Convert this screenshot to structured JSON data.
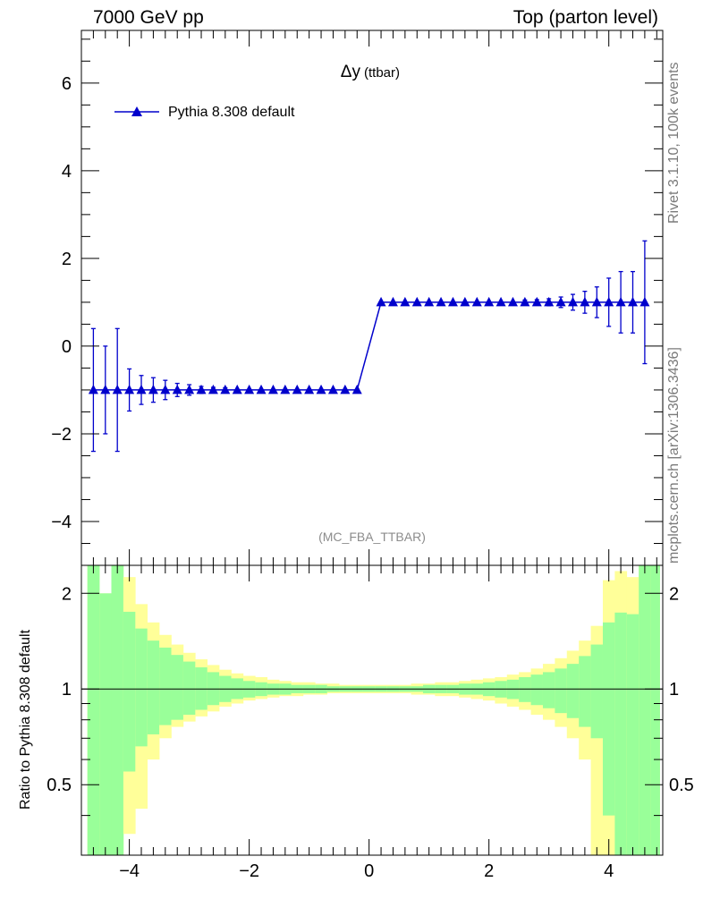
{
  "header": {
    "left": "7000 GeV pp",
    "right": "Top (parton level)"
  },
  "side_labels": {
    "rivet": "Rivet 3.1.10,  100k events",
    "source": "mcplots.cern.ch [arXiv:1306.3436]"
  },
  "colors": {
    "series": "#0000cc",
    "band_stat": "#99ff99",
    "band_total": "#ffff99",
    "tag": "#8c8c8c"
  },
  "chart_data": [
    {
      "type": "line",
      "title": "Δy",
      "title_sub": "(ttbar)",
      "analysis_tag": "(MC_FBA_TTBAR)",
      "xlim": [
        -4.8,
        4.9
      ],
      "ylim": [
        -5,
        7.2
      ],
      "yticks": [
        -4,
        -2,
        0,
        2,
        4,
        6
      ],
      "ytick_labels": [
        "−4",
        "−2",
        "0",
        "2",
        "4",
        "6"
      ],
      "legend_position": "top-left",
      "series": [
        {
          "name": "Pythia 8.308 default",
          "marker": "triangle",
          "x": [
            -4.6,
            -4.4,
            -4.2,
            -4.0,
            -3.8,
            -3.6,
            -3.4,
            -3.2,
            -3.0,
            -2.8,
            -2.6,
            -2.4,
            -2.2,
            -2.0,
            -1.8,
            -1.6,
            -1.4,
            -1.2,
            -1.0,
            -0.8,
            -0.6,
            -0.4,
            -0.2,
            0.2,
            0.4,
            0.6,
            0.8,
            1.0,
            1.2,
            1.4,
            1.6,
            1.8,
            2.0,
            2.2,
            2.4,
            2.6,
            2.8,
            3.0,
            3.2,
            3.4,
            3.6,
            3.8,
            4.0,
            4.2,
            4.4,
            4.6
          ],
          "y": [
            -1,
            -1,
            -1,
            -1,
            -1,
            -1,
            -1,
            -1,
            -1,
            -1,
            -1,
            -1,
            -1,
            -1,
            -1,
            -1,
            -1,
            -1,
            -1,
            -1,
            -1,
            -1,
            -1,
            1,
            1,
            1,
            1,
            1,
            1,
            1,
            1,
            1,
            1,
            1,
            1,
            1,
            1,
            1,
            1,
            1,
            1,
            1,
            1,
            1,
            1,
            1
          ],
          "yerr": [
            1.4,
            1.0,
            1.4,
            0.48,
            0.33,
            0.28,
            0.22,
            0.15,
            0.12,
            0.08,
            0.06,
            0.05,
            0.04,
            0.03,
            0.03,
            0.02,
            0.02,
            0.02,
            0.01,
            0.01,
            0.01,
            0.01,
            0.01,
            0.01,
            0.01,
            0.01,
            0.01,
            0.01,
            0.01,
            0.02,
            0.02,
            0.02,
            0.03,
            0.03,
            0.04,
            0.05,
            0.06,
            0.08,
            0.12,
            0.18,
            0.25,
            0.35,
            0.55,
            0.7,
            0.7,
            1.4
          ]
        }
      ]
    },
    {
      "type": "area",
      "ylabel": "Ratio to Pythia 8.308 default",
      "xlim": [
        -4.8,
        4.9
      ],
      "ylim": [
        0.3,
        2.45
      ],
      "yticks": [
        0.5,
        1,
        2
      ],
      "ytick_labels": [
        "0.5",
        "1",
        "2"
      ],
      "xticks": [
        -4,
        -2,
        0,
        2,
        4
      ],
      "xtick_labels": [
        "−4",
        "−2",
        "0",
        "2",
        "4"
      ],
      "reference_line": 1,
      "bin_edges": [
        -4.7,
        -4.5,
        -4.3,
        -4.1,
        -3.9,
        -3.7,
        -3.5,
        -3.3,
        -3.1,
        -2.9,
        -2.7,
        -2.5,
        -2.3,
        -2.1,
        -1.9,
        -1.7,
        -1.5,
        -1.3,
        -1.1,
        -0.9,
        -0.7,
        -0.5,
        -0.3,
        -0.1,
        0.1,
        0.3,
        0.5,
        0.7,
        0.9,
        1.1,
        1.3,
        1.5,
        1.7,
        1.9,
        2.1,
        2.3,
        2.5,
        2.7,
        2.9,
        3.1,
        3.3,
        3.5,
        3.7,
        3.9,
        4.1,
        4.3,
        4.5,
        4.7,
        4.85
      ],
      "series": [
        {
          "name": "stat",
          "up": [
            2.45,
            2.0,
            2.45,
            1.75,
            1.55,
            1.42,
            1.35,
            1.28,
            1.22,
            1.17,
            1.13,
            1.1,
            1.08,
            1.06,
            1.05,
            1.04,
            1.04,
            1.03,
            1.03,
            1.03,
            1.02,
            1.02,
            1.02,
            1.02,
            1.02,
            1.02,
            1.02,
            1.02,
            1.03,
            1.03,
            1.03,
            1.04,
            1.04,
            1.05,
            1.06,
            1.07,
            1.09,
            1.11,
            1.13,
            1.16,
            1.2,
            1.27,
            1.38,
            1.62,
            1.74,
            1.72,
            2.45,
            2.45
          ],
          "down": [
            0.3,
            0.3,
            0.3,
            0.55,
            0.66,
            0.72,
            0.77,
            0.8,
            0.83,
            0.86,
            0.89,
            0.91,
            0.93,
            0.94,
            0.95,
            0.96,
            0.96,
            0.97,
            0.97,
            0.97,
            0.98,
            0.98,
            0.98,
            0.98,
            0.98,
            0.98,
            0.98,
            0.98,
            0.97,
            0.97,
            0.97,
            0.96,
            0.96,
            0.95,
            0.94,
            0.93,
            0.91,
            0.89,
            0.87,
            0.84,
            0.81,
            0.76,
            0.7,
            0.4,
            0.3,
            0.3,
            0.3,
            0.3
          ]
        },
        {
          "name": "total",
          "up": [
            2.45,
            2.0,
            2.45,
            2.25,
            1.85,
            1.62,
            1.48,
            1.38,
            1.3,
            1.24,
            1.19,
            1.15,
            1.12,
            1.1,
            1.09,
            1.07,
            1.06,
            1.05,
            1.05,
            1.04,
            1.04,
            1.03,
            1.03,
            1.03,
            1.03,
            1.03,
            1.03,
            1.04,
            1.04,
            1.05,
            1.05,
            1.06,
            1.07,
            1.08,
            1.09,
            1.11,
            1.13,
            1.16,
            1.2,
            1.25,
            1.32,
            1.42,
            1.58,
            2.2,
            2.35,
            2.25,
            2.45,
            2.45
          ],
          "down": [
            0.3,
            0.3,
            0.3,
            0.35,
            0.42,
            0.6,
            0.7,
            0.76,
            0.79,
            0.82,
            0.85,
            0.88,
            0.9,
            0.92,
            0.93,
            0.94,
            0.95,
            0.95,
            0.96,
            0.96,
            0.97,
            0.97,
            0.97,
            0.97,
            0.97,
            0.97,
            0.97,
            0.96,
            0.96,
            0.95,
            0.95,
            0.94,
            0.93,
            0.92,
            0.9,
            0.88,
            0.86,
            0.83,
            0.8,
            0.76,
            0.7,
            0.6,
            0.3,
            0.3,
            0.3,
            0.3,
            0.3,
            0.3
          ]
        }
      ]
    }
  ]
}
